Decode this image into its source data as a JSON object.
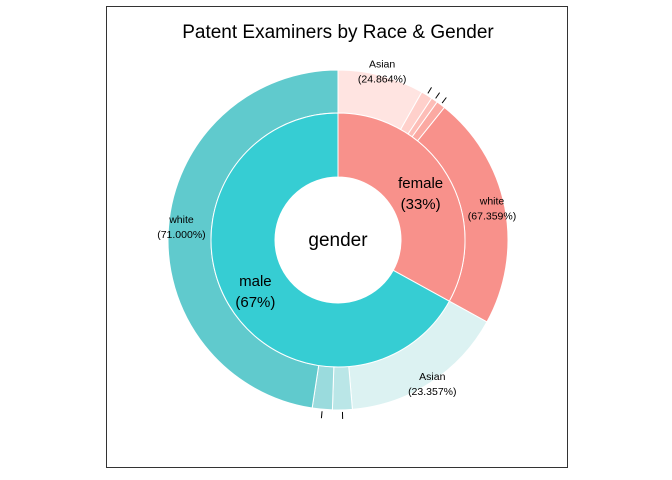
{
  "chart_data": {
    "type": "pie",
    "variant": "donut-sunburst",
    "title": "Patent Examiners by Race & Gender",
    "center_label": "gender",
    "border": true,
    "inner_ring": [
      {
        "name": "female",
        "value": 33,
        "pct_label": "(33%)",
        "color": "#F8918B"
      },
      {
        "name": "male",
        "value": 67,
        "pct_label": "(67%)",
        "color": "#36CDD3"
      }
    ],
    "outer_ring": [
      {
        "parent": "female",
        "race": "Asian",
        "pct": 24.864,
        "pct_label": "(24.864%)",
        "color": "#FFE4E1",
        "show_label": true
      },
      {
        "parent": "female",
        "race": "",
        "pct": 3.3,
        "pct_label": "",
        "color": "#FFD0CB",
        "show_label": false
      },
      {
        "parent": "female",
        "race": "",
        "pct": 1.9,
        "pct_label": "",
        "color": "#FDBDB7",
        "show_label": false
      },
      {
        "parent": "female",
        "race": "",
        "pct": 2.577,
        "pct_label": "",
        "color": "#FBA9A2",
        "show_label": false
      },
      {
        "parent": "female",
        "race": "white",
        "pct": 67.359,
        "pct_label": "(67.359%)",
        "color": "#F8918B",
        "show_label": true
      },
      {
        "parent": "male",
        "race": "Asian",
        "pct": 23.357,
        "pct_label": "(23.357%)",
        "color": "#DCF2F2",
        "show_label": true
      },
      {
        "parent": "male",
        "race": "",
        "pct": 2.8,
        "pct_label": "",
        "color": "#BAE6E7",
        "show_label": false
      },
      {
        "parent": "male",
        "race": "",
        "pct": 2.843,
        "pct_label": "",
        "color": "#9ADBDD",
        "show_label": false
      },
      {
        "parent": "male",
        "race": "white",
        "pct": 71.0,
        "pct_label": "(71.000%)",
        "color": "#60CACD",
        "show_label": true
      }
    ]
  }
}
